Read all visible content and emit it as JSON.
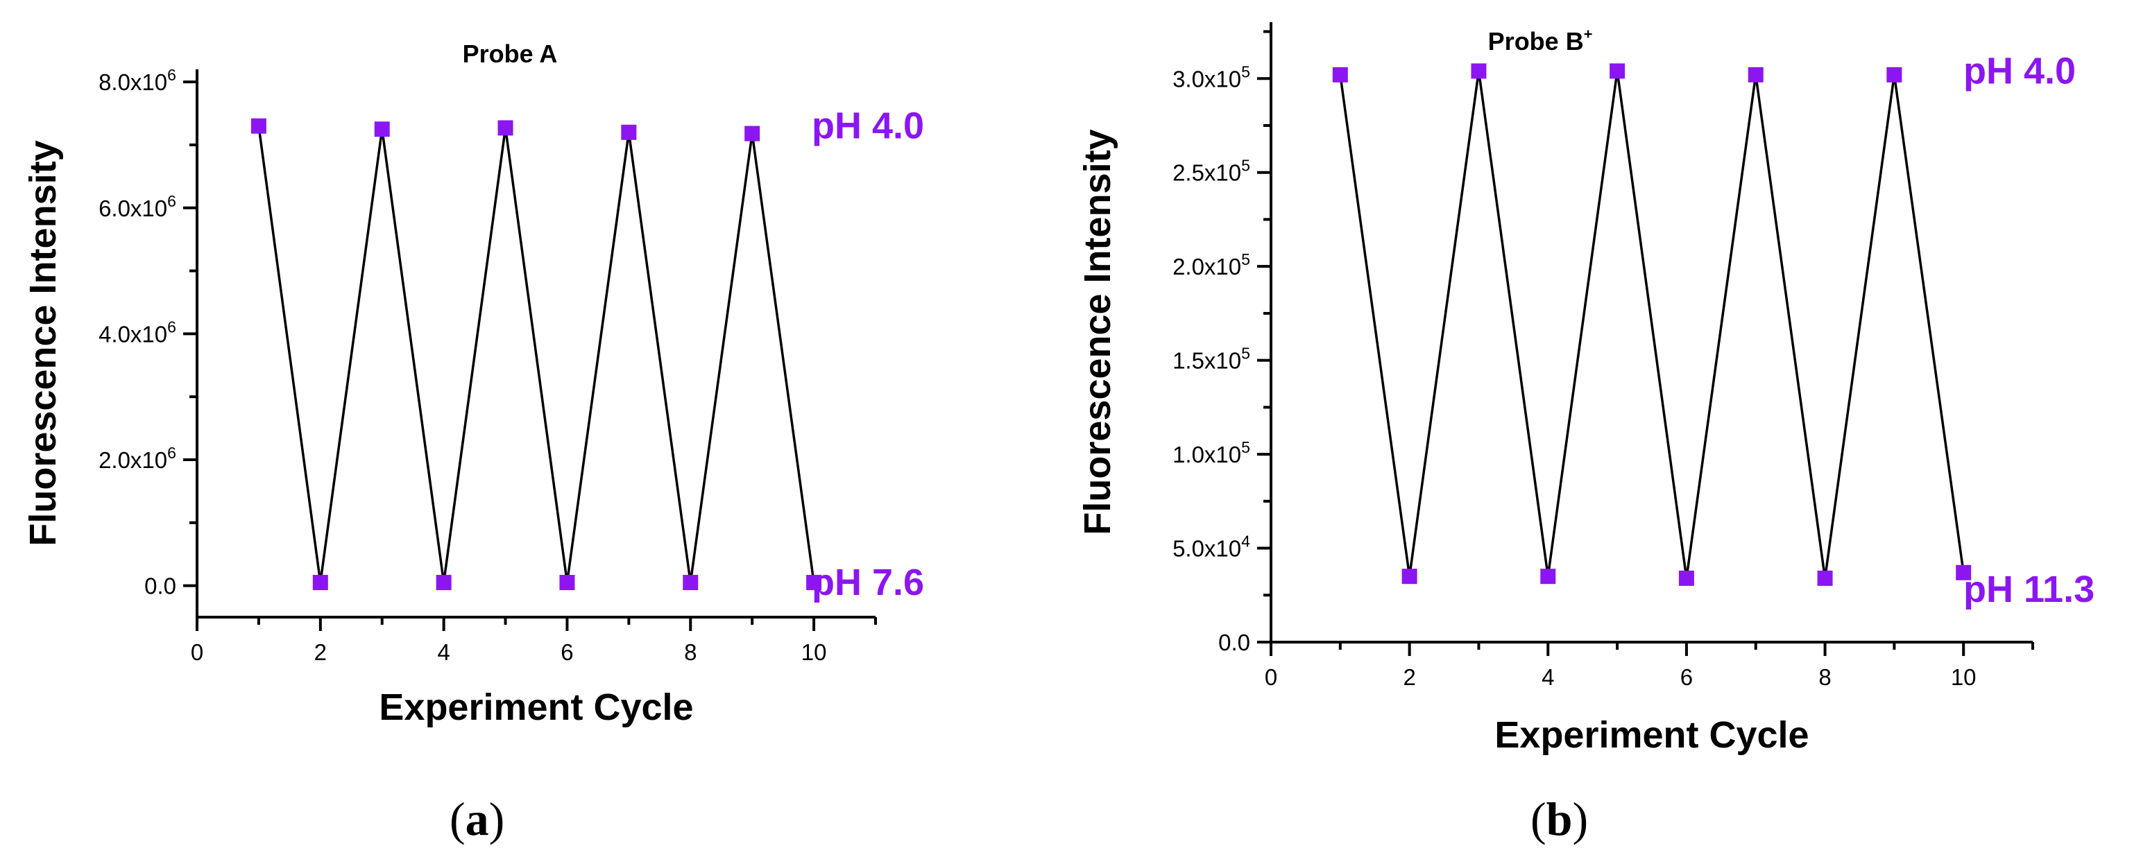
{
  "colors": {
    "marker": "#8b16f2",
    "line": "#000000",
    "ph_label": "#8b16f2"
  },
  "chart_data": [
    {
      "type": "line",
      "title": "Probe A",
      "title_sup": "",
      "xlabel": "Experiment Cycle",
      "ylabel": "Fluorescence Intensity",
      "x": [
        1,
        2,
        3,
        4,
        5,
        6,
        7,
        8,
        9,
        10
      ],
      "series": [
        {
          "name": "Probe A",
          "values": [
            7300000,
            50000,
            7250000,
            50000,
            7270000,
            50000,
            7200000,
            50000,
            7180000,
            50000
          ]
        }
      ],
      "xlim": [
        0,
        11
      ],
      "ylim": [
        -500000,
        8200000
      ],
      "xticks": [
        {
          "value": 0,
          "label": "0"
        },
        {
          "value": 2,
          "label": "2"
        },
        {
          "value": 4,
          "label": "4"
        },
        {
          "value": 6,
          "label": "6"
        },
        {
          "value": 8,
          "label": "8"
        },
        {
          "value": 10,
          "label": "10"
        }
      ],
      "yticks": [
        {
          "value": 0,
          "mant": "0.0",
          "exp": ""
        },
        {
          "value": 2000000,
          "mant": "2.0x10",
          "exp": "6"
        },
        {
          "value": 4000000,
          "mant": "4.0x10",
          "exp": "6"
        },
        {
          "value": 6000000,
          "mant": "6.0x10",
          "exp": "6"
        },
        {
          "value": 8000000,
          "mant": "8.0x10",
          "exp": "6"
        }
      ],
      "annotations": [
        {
          "text": "pH 4.0",
          "placement": "right-of-high-points"
        },
        {
          "text": "pH 7.6",
          "placement": "right-of-low-points"
        }
      ],
      "caption": {
        "open": "(",
        "letter": "a",
        "close": ")"
      }
    },
    {
      "type": "line",
      "title": "Probe B",
      "title_sup": "+",
      "xlabel": "Experiment Cycle",
      "ylabel": "Fluorescence Intensity",
      "x": [
        1,
        2,
        3,
        4,
        5,
        6,
        7,
        8,
        9,
        10
      ],
      "series": [
        {
          "name": "Probe B+",
          "values": [
            302000,
            35000,
            304000,
            35000,
            304000,
            34000,
            302000,
            34000,
            302000,
            37000
          ]
        }
      ],
      "xlim": [
        0,
        11
      ],
      "ylim": [
        0,
        330000
      ],
      "xticks": [
        {
          "value": 0,
          "label": "0"
        },
        {
          "value": 2,
          "label": "2"
        },
        {
          "value": 4,
          "label": "4"
        },
        {
          "value": 6,
          "label": "6"
        },
        {
          "value": 8,
          "label": "8"
        },
        {
          "value": 10,
          "label": "10"
        }
      ],
      "yticks": [
        {
          "value": 0,
          "mant": "0.0",
          "exp": ""
        },
        {
          "value": 50000,
          "mant": "5.0x10",
          "exp": "4"
        },
        {
          "value": 100000,
          "mant": "1.0x10",
          "exp": "5"
        },
        {
          "value": 150000,
          "mant": "1.5x10",
          "exp": "5"
        },
        {
          "value": 200000,
          "mant": "2.0x10",
          "exp": "5"
        },
        {
          "value": 250000,
          "mant": "2.5x10",
          "exp": "5"
        },
        {
          "value": 300000,
          "mant": "3.0x10",
          "exp": "5"
        }
      ],
      "annotations": [
        {
          "text": "pH 4.0",
          "placement": "right-of-high-points"
        },
        {
          "text": "pH 11.3",
          "placement": "right-of-low-points"
        }
      ],
      "caption": {
        "open": "(",
        "letter": "b",
        "close": ")"
      }
    }
  ]
}
